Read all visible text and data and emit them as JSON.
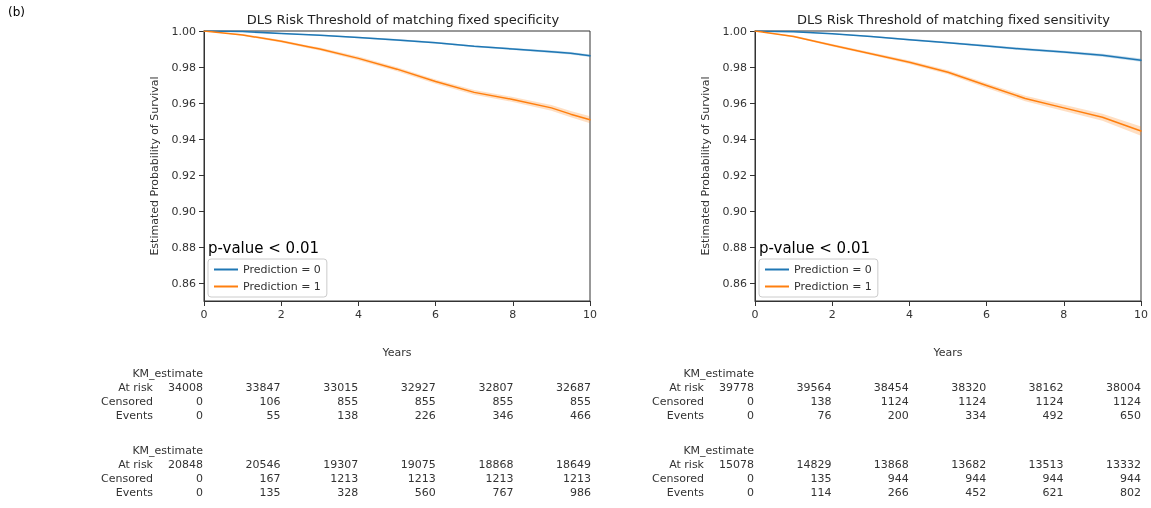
{
  "chart_data": [
    {
      "type": "line",
      "title": "DLS Risk Threshold of matching fixed specificity",
      "xlabel": "Years",
      "ylabel": "Estimated Probability of Survival",
      "xlim": [
        0,
        10
      ],
      "xticks": [
        0,
        2,
        4,
        6,
        8,
        10
      ],
      "ylim": [
        0.85,
        1.0
      ],
      "yticks": [
        {
          "value": 0.86,
          "label": "0.86"
        },
        {
          "value": 0.88,
          "label": "0.88"
        },
        {
          "value": 0.9,
          "label": "0.90"
        },
        {
          "value": 0.92,
          "label": "0.92"
        },
        {
          "value": 0.94,
          "label": "0.94"
        },
        {
          "value": 0.96,
          "label": "0.96"
        },
        {
          "value": 0.98,
          "label": "0.98"
        },
        {
          "value": 1.0,
          "label": "1.00"
        }
      ],
      "grid": false,
      "legend": "bottom left",
      "marker": "none",
      "line_style": "solid",
      "series": [
        {
          "name": "Prediction = 0",
          "color": "#1f77b4",
          "x": [
            0,
            1,
            2,
            3,
            4,
            5,
            6,
            7,
            8,
            9,
            9.5,
            10
          ],
          "values": [
            1.0,
            0.9997,
            0.9986,
            0.9977,
            0.9964,
            0.995,
            0.9935,
            0.9915,
            0.99,
            0.9885,
            0.9877,
            0.9862
          ],
          "lower": [
            1.0,
            0.9995,
            0.9983,
            0.9973,
            0.996,
            0.9945,
            0.993,
            0.991,
            0.9894,
            0.9878,
            0.987,
            0.9855
          ],
          "upper": [
            1.0,
            0.9999,
            0.9989,
            0.9981,
            0.9968,
            0.9955,
            0.994,
            0.992,
            0.9906,
            0.9892,
            0.9884,
            0.9869
          ]
        },
        {
          "name": "Prediction = 1",
          "color": "#ff7f0e",
          "x": [
            0,
            1,
            2,
            2.7,
            3,
            4,
            5,
            6,
            7,
            8,
            9,
            9.5,
            10
          ],
          "values": [
            1.0,
            0.9978,
            0.9943,
            0.9912,
            0.99,
            0.9848,
            0.9788,
            0.9719,
            0.9659,
            0.962,
            0.9573,
            0.9538,
            0.9507
          ],
          "lower": [
            1.0,
            0.9973,
            0.9936,
            0.9904,
            0.9891,
            0.9838,
            0.9777,
            0.9707,
            0.9646,
            0.9606,
            0.9557,
            0.9521,
            0.9488
          ],
          "upper": [
            1.0,
            0.9983,
            0.995,
            0.992,
            0.9909,
            0.9858,
            0.9799,
            0.9731,
            0.9672,
            0.9634,
            0.9589,
            0.9555,
            0.9526
          ]
        }
      ],
      "annotations": [
        "p-value < 0.01",
        "KM_estimate",
        "At risk  34008  33847  33015  32927  32807  32687",
        "Censored  0  106  855  855  855  855",
        "Events  0  55  138  226  346  466",
        "KM_estimate",
        "At risk  20848  20546  19307  19075  18868  18649",
        "Censored  0  167  1213  1213  1213  1213",
        "Events  0  135  328  560  767  986",
        "(b)"
      ]
    },
    {
      "type": "line",
      "title": "DLS Risk Threshold of matching fixed sensitivity",
      "xlabel": "Years",
      "ylabel": "Estimated Probability of Survival",
      "xlim": [
        0,
        10
      ],
      "xticks": [
        0,
        2,
        4,
        6,
        8,
        10
      ],
      "ylim": [
        0.85,
        1.0
      ],
      "yticks": [
        {
          "value": 0.86,
          "label": "0.86"
        },
        {
          "value": 0.88,
          "label": "0.88"
        },
        {
          "value": 0.9,
          "label": "0.90"
        },
        {
          "value": 0.92,
          "label": "0.92"
        },
        {
          "value": 0.94,
          "label": "0.94"
        },
        {
          "value": 0.96,
          "label": "0.96"
        },
        {
          "value": 0.98,
          "label": "0.98"
        },
        {
          "value": 1.0,
          "label": "1.00"
        }
      ],
      "grid": false,
      "legend": "bottom left",
      "marker": "none",
      "line_style": "solid",
      "series": [
        {
          "name": "Prediction = 0",
          "color": "#1f77b4",
          "x": [
            0,
            1,
            2,
            3,
            4,
            5,
            6,
            7,
            8,
            9,
            10
          ],
          "values": [
            1.0,
            0.9996,
            0.9985,
            0.997,
            0.9952,
            0.9935,
            0.9917,
            0.9898,
            0.9883,
            0.9865,
            0.9838
          ],
          "lower": [
            1.0,
            0.9994,
            0.9982,
            0.9966,
            0.9947,
            0.993,
            0.9911,
            0.9891,
            0.9876,
            0.9857,
            0.9829
          ],
          "upper": [
            1.0,
            0.9998,
            0.9988,
            0.9974,
            0.9957,
            0.994,
            0.9923,
            0.9905,
            0.989,
            0.9873,
            0.9847
          ]
        },
        {
          "name": "Prediction = 1",
          "color": "#ff7f0e",
          "x": [
            0,
            1,
            2,
            3,
            4,
            5,
            6,
            7,
            8,
            9,
            10
          ],
          "values": [
            1.0,
            0.997,
            0.9921,
            0.9874,
            0.9826,
            0.9771,
            0.9697,
            0.9625,
            0.9573,
            0.9521,
            0.9444
          ],
          "lower": [
            1.0,
            0.9965,
            0.9914,
            0.9866,
            0.9816,
            0.976,
            0.9684,
            0.961,
            0.9556,
            0.9502,
            0.9418
          ],
          "upper": [
            1.0,
            0.9975,
            0.9928,
            0.9882,
            0.9836,
            0.9782,
            0.971,
            0.964,
            0.959,
            0.954,
            0.947
          ]
        }
      ],
      "annotations": [
        "p-value < 0.01",
        "KM_estimate",
        "At risk  39778  39564  38454  38320  38162  38004",
        "Censored  0  138  1124  1124  1124  1124",
        "Events  0  76  200  334  492  650",
        "KM_estimate",
        "At risk  15078  14829  13868  13682  13513  13332",
        "Censored  0  135  944  944  944  944",
        "Events  0  114  266  452  621  802"
      ]
    }
  ]
}
